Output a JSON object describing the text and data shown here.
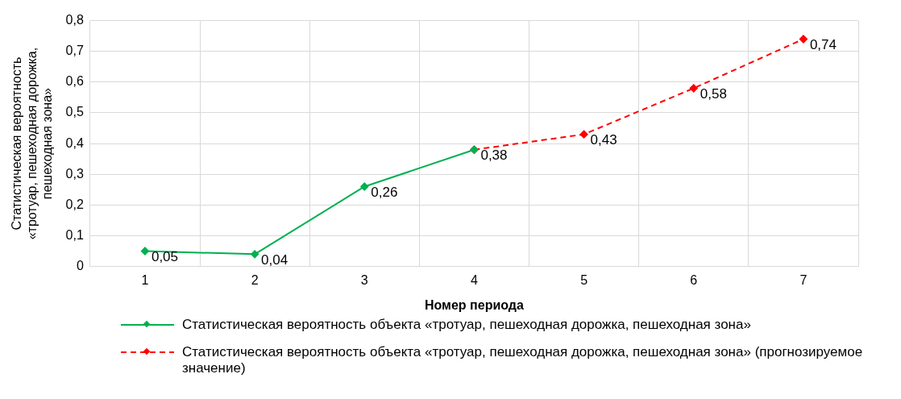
{
  "chart_data": {
    "type": "line",
    "xlabel": "Номер периода",
    "ylabel": "Статистическая вероятность «тротуар, пешеходная дорожка, пешеходная зона»",
    "categories": [
      "1",
      "2",
      "3",
      "4",
      "5",
      "6",
      "7"
    ],
    "series": [
      {
        "name": "Статистическая вероятность объекта «тротуар, пешеходная дорожка, пешеходная зона»",
        "color": "#00b050",
        "line_style": "solid",
        "values": [
          0.05,
          0.04,
          0.26,
          0.38,
          null,
          null,
          null
        ],
        "value_labels": [
          "0,05",
          "0,04",
          "0,26",
          null,
          null,
          null,
          null
        ]
      },
      {
        "name": "Статистическая вероятность объекта «тротуар, пешеходная дорожка, пешеходная зона» (прогнозируемое значение)",
        "color": "#ff0000",
        "line_style": "dashed",
        "values": [
          null,
          null,
          null,
          0.38,
          0.43,
          0.58,
          0.74
        ],
        "value_labels": [
          null,
          null,
          null,
          "0,38",
          "0,43",
          "0,58",
          "0,74"
        ]
      }
    ],
    "ylim": [
      0,
      0.8
    ],
    "yticks": [
      0,
      {
        "value": 0.1,
        "label": "0,1"
      },
      {
        "value": 0.2,
        "label": "0,2"
      },
      {
        "value": 0.3,
        "label": "0,3"
      },
      {
        "value": 0.4,
        "label": "0,4"
      },
      {
        "value": 0.5,
        "label": "0,5"
      },
      {
        "value": 0.6,
        "label": "0,6"
      },
      {
        "value": 0.7,
        "label": "0,7"
      },
      {
        "value": 0.8,
        "label": "0,8"
      }
    ],
    "grid": true,
    "legend": "bottom",
    "marker": "diamond"
  }
}
